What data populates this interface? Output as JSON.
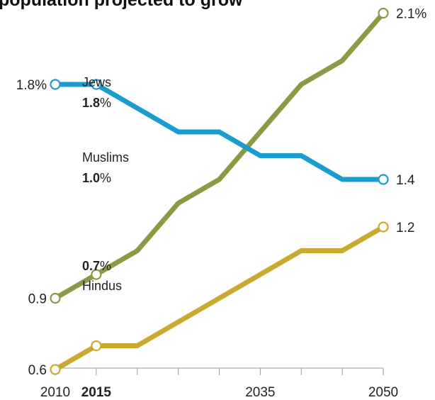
{
  "chart_data": {
    "type": "line",
    "title": "population projected to grow",
    "x": [
      2010,
      2015,
      2020,
      2025,
      2030,
      2035,
      2040,
      2045,
      2050
    ],
    "xticks": [
      2010,
      2015,
      2020,
      2025,
      2030,
      2035,
      2040,
      2045,
      2050
    ],
    "xtick_labels": [
      {
        "value": 2010,
        "text": "2010",
        "bold": false
      },
      {
        "value": 2015,
        "text": "2015",
        "bold": true
      },
      {
        "value": 2035,
        "text": "2035",
        "bold": false
      },
      {
        "value": 2050,
        "text": "2050",
        "bold": false
      }
    ],
    "ylim": [
      0,
      2.1
    ],
    "grid": false,
    "series": [
      {
        "name": "Jews",
        "color": "#1a9ccf",
        "values": [
          1.8,
          1.8,
          1.7,
          1.6,
          1.6,
          1.5,
          1.5,
          1.4,
          1.4
        ],
        "start_label": "1.8%",
        "end_label": "1.4",
        "annotation_name": "Jews",
        "annotation_value": "1.8",
        "annotation_unit": "%"
      },
      {
        "name": "Muslims",
        "color": "#8a9a45",
        "values": [
          0.9,
          1.0,
          1.1,
          1.3,
          1.4,
          1.6,
          1.8,
          1.9,
          2.1
        ],
        "start_label": "0.9",
        "end_label": "2.1%",
        "annotation_name": "Muslims",
        "annotation_value": "1.0",
        "annotation_unit": "%"
      },
      {
        "name": "Hindus",
        "color": "#c9a92e",
        "values": [
          0.6,
          0.7,
          0.7,
          0.8,
          0.9,
          1.0,
          1.1,
          1.1,
          1.2
        ],
        "start_label": "0.6",
        "end_label": "1.2",
        "annotation_name": "Hindus",
        "annotation_value": "0.7",
        "annotation_unit": "%"
      }
    ]
  }
}
